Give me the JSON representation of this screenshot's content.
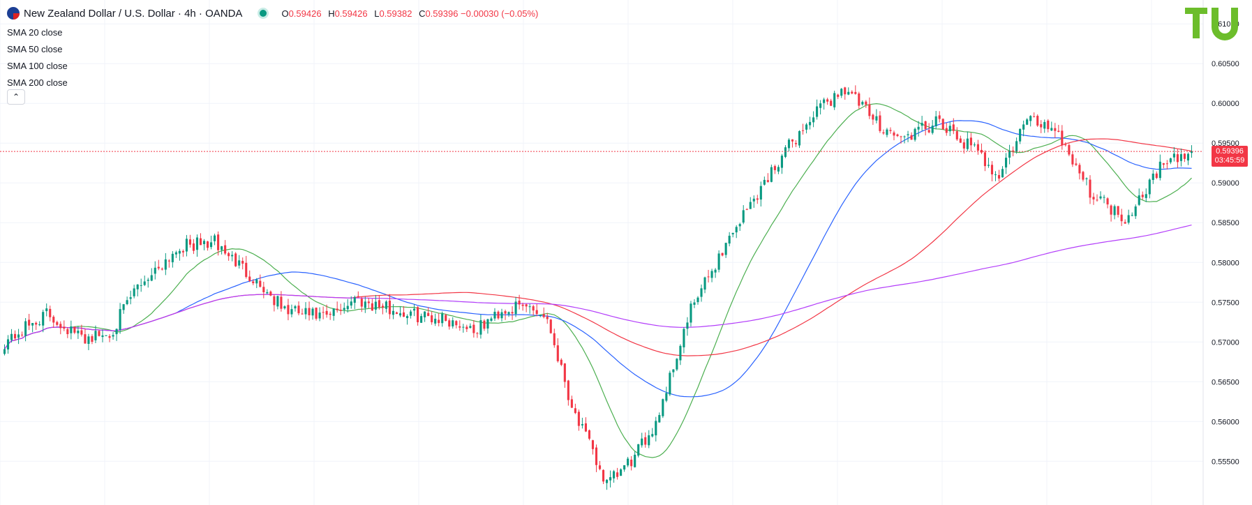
{
  "header": {
    "title": "New Zealand Dollar / U.S. Dollar · 4h · OANDA",
    "ohlc": [
      {
        "label": "O",
        "value": "0.59426"
      },
      {
        "label": "H",
        "value": "0.59426"
      },
      {
        "label": "L",
        "value": "0.59382"
      },
      {
        "label": "C",
        "value": "0.59396 −0.00030 (−0.05%)"
      }
    ]
  },
  "indicators": [
    {
      "name": "SMA",
      "param": "20 close",
      "color": "#4caf50"
    },
    {
      "name": "SMA",
      "param": "50 close",
      "color": "#2962ff"
    },
    {
      "name": "SMA",
      "param": "100 close",
      "color": "#f23645"
    },
    {
      "name": "SMA",
      "param": "200 close",
      "color": "#b33dfa"
    }
  ],
  "collapse_glyph": "⌃",
  "logo_text": "TU",
  "last_price": {
    "value": "0.59396",
    "countdown": "03:45:59"
  },
  "colors": {
    "up": "#089981",
    "down": "#f23645",
    "grid": "#f0f3fa",
    "axis_text": "#131722"
  },
  "chart_data": {
    "type": "candlestick",
    "symbol": "NZDUSD",
    "interval": "4h",
    "ylim": [
      0.5495,
      0.613
    ],
    "yticks": [
      "0.61000",
      "0.60500",
      "0.60000",
      "0.59500",
      "0.59000",
      "0.58500",
      "0.58000",
      "0.57500",
      "0.57000",
      "0.56500",
      "0.56000",
      "0.55500"
    ],
    "bar_count": 340,
    "close_anchors": [
      [
        0,
        0.57
      ],
      [
        12,
        0.5735
      ],
      [
        22,
        0.5705
      ],
      [
        30,
        0.571
      ],
      [
        38,
        0.577
      ],
      [
        50,
        0.582
      ],
      [
        60,
        0.5825
      ],
      [
        70,
        0.5785
      ],
      [
        80,
        0.574
      ],
      [
        92,
        0.573
      ],
      [
        100,
        0.5755
      ],
      [
        115,
        0.5735
      ],
      [
        125,
        0.573
      ],
      [
        135,
        0.5715
      ],
      [
        142,
        0.574
      ],
      [
        150,
        0.5745
      ],
      [
        155,
        0.573
      ],
      [
        162,
        0.562
      ],
      [
        172,
        0.552
      ],
      [
        180,
        0.5555
      ],
      [
        186,
        0.56
      ],
      [
        196,
        0.574
      ],
      [
        202,
        0.579
      ],
      [
        208,
        0.584
      ],
      [
        214,
        0.588
      ],
      [
        222,
        0.5935
      ],
      [
        232,
        0.599
      ],
      [
        240,
        0.602
      ],
      [
        248,
        0.598
      ],
      [
        256,
        0.5955
      ],
      [
        266,
        0.5975
      ],
      [
        276,
        0.5945
      ],
      [
        284,
        0.591
      ],
      [
        292,
        0.598
      ],
      [
        300,
        0.597
      ],
      [
        310,
        0.589
      ],
      [
        320,
        0.5855
      ],
      [
        330,
        0.592
      ],
      [
        340,
        0.594
      ]
    ],
    "sma_periods": [
      20,
      50,
      100,
      200
    ],
    "last_close": 0.59396
  }
}
